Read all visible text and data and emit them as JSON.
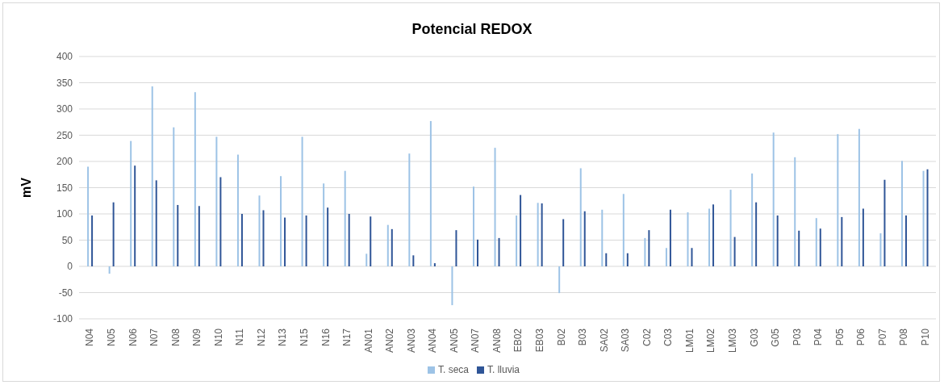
{
  "chart_data": {
    "type": "bar",
    "title": "Potencial REDOX",
    "ylabel": "mV",
    "categories": [
      "N04",
      "N05",
      "N06",
      "N07",
      "N08",
      "N09",
      "N10",
      "N11",
      "N12",
      "N13",
      "N15",
      "N16",
      "N17",
      "AN01",
      "AN02",
      "AN03",
      "AN04",
      "AN05",
      "AN07",
      "AN08",
      "EB02",
      "EB03",
      "B02",
      "B03",
      "SA02",
      "SA03",
      "C02",
      "C03",
      "LM01",
      "LM02",
      "LM03",
      "G03",
      "G05",
      "P03",
      "P04",
      "P05",
      "P06",
      "P07",
      "P08",
      "P10"
    ],
    "series": [
      {
        "name": "T. seca",
        "color": "#9dc3e6",
        "values": [
          190,
          -14,
          239,
          343,
          265,
          332,
          247,
          213,
          135,
          172,
          247,
          158,
          182,
          24,
          79,
          215,
          277,
          -74,
          152,
          226,
          97,
          121,
          -51,
          187,
          108,
          138,
          54,
          35,
          103,
          110,
          146,
          177,
          255,
          208,
          92,
          252,
          262,
          63,
          201,
          182
        ]
      },
      {
        "name": "T. lluvia",
        "color": "#2f5597",
        "values": [
          97,
          122,
          192,
          164,
          117,
          115,
          170,
          100,
          107,
          93,
          97,
          112,
          100,
          95,
          71,
          21,
          6,
          69,
          51,
          54,
          136,
          120,
          90,
          105,
          25,
          25,
          69,
          108,
          35,
          118,
          56,
          122,
          97,
          68,
          72,
          94,
          110,
          165,
          97,
          185
        ]
      }
    ],
    "ylim": [
      -100,
      400
    ],
    "yticks": [
      -100,
      -50,
      0,
      50,
      100,
      150,
      200,
      250,
      300,
      350,
      400
    ],
    "grid": "y",
    "legend": "bottom"
  }
}
